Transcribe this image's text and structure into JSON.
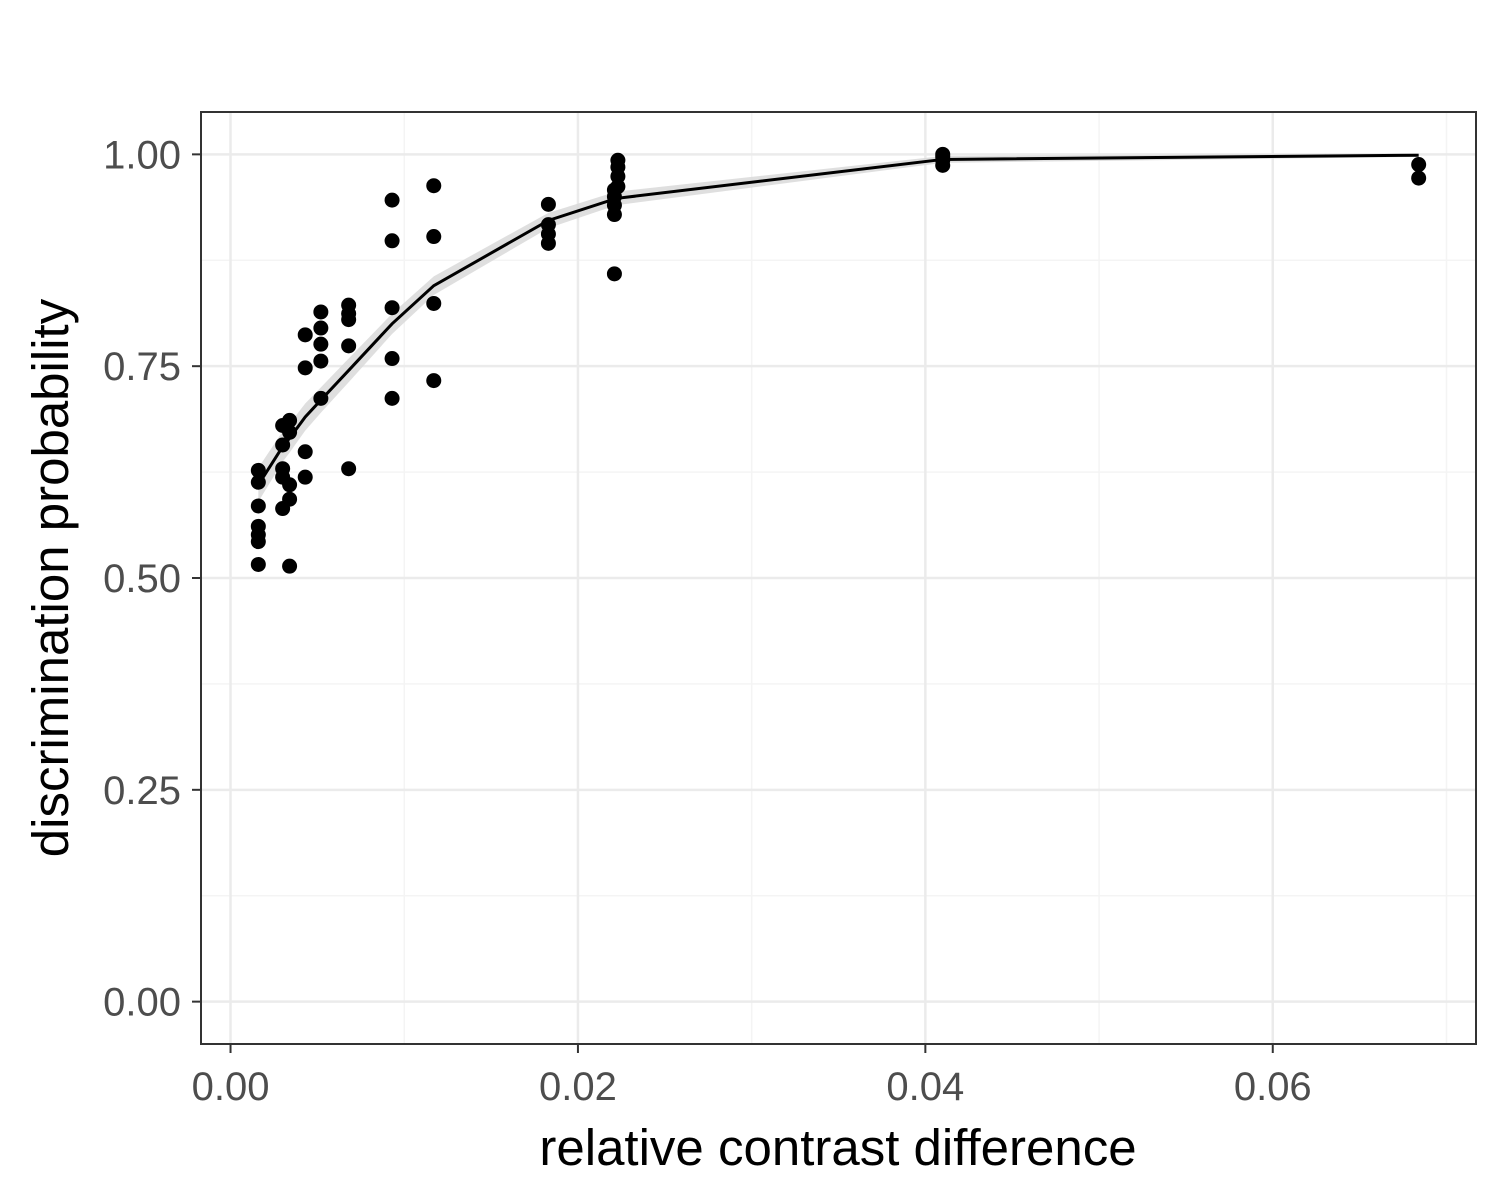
{
  "chart_data": {
    "type": "scatter",
    "title": "",
    "xlabel": "relative contrast difference",
    "ylabel": "discrimination probability",
    "xlim": [
      -0.0017,
      0.0717
    ],
    "ylim": [
      -0.05,
      1.05
    ],
    "x_ticks": [
      0.0,
      0.02,
      0.04,
      0.06
    ],
    "x_tick_labels": [
      "0.00",
      "0.02",
      "0.04",
      "0.06"
    ],
    "y_ticks": [
      0.0,
      0.25,
      0.5,
      0.75,
      1.0
    ],
    "y_tick_labels": [
      "0.00",
      "0.25",
      "0.50",
      "0.75",
      "1.00"
    ],
    "x_minor": [
      0.01,
      0.03,
      0.05,
      0.07
    ],
    "y_minor": [
      0.125,
      0.375,
      0.625,
      0.875
    ],
    "grid": true,
    "legend": "none",
    "colors": {
      "points": "#000000",
      "line": "#000000",
      "ribbon": "#d9d9d9",
      "grid_major": "#ebebeb",
      "grid_minor": "#f4f4f4",
      "panel_border": "#333333"
    },
    "points": [
      {
        "x": 0.0016,
        "y": 0.627
      },
      {
        "x": 0.0016,
        "y": 0.613
      },
      {
        "x": 0.0016,
        "y": 0.585
      },
      {
        "x": 0.0016,
        "y": 0.561
      },
      {
        "x": 0.0016,
        "y": 0.551
      },
      {
        "x": 0.0016,
        "y": 0.543
      },
      {
        "x": 0.0016,
        "y": 0.516
      },
      {
        "x": 0.003,
        "y": 0.68
      },
      {
        "x": 0.003,
        "y": 0.657
      },
      {
        "x": 0.003,
        "y": 0.629
      },
      {
        "x": 0.003,
        "y": 0.619
      },
      {
        "x": 0.003,
        "y": 0.582
      },
      {
        "x": 0.0034,
        "y": 0.686
      },
      {
        "x": 0.0034,
        "y": 0.672
      },
      {
        "x": 0.0034,
        "y": 0.61
      },
      {
        "x": 0.0034,
        "y": 0.593
      },
      {
        "x": 0.0034,
        "y": 0.514
      },
      {
        "x": 0.0043,
        "y": 0.787
      },
      {
        "x": 0.0043,
        "y": 0.748
      },
      {
        "x": 0.0043,
        "y": 0.649
      },
      {
        "x": 0.0043,
        "y": 0.619
      },
      {
        "x": 0.0052,
        "y": 0.814
      },
      {
        "x": 0.0052,
        "y": 0.795
      },
      {
        "x": 0.0052,
        "y": 0.776
      },
      {
        "x": 0.0052,
        "y": 0.756
      },
      {
        "x": 0.0052,
        "y": 0.712
      },
      {
        "x": 0.0068,
        "y": 0.822
      },
      {
        "x": 0.0068,
        "y": 0.812
      },
      {
        "x": 0.0068,
        "y": 0.805
      },
      {
        "x": 0.0068,
        "y": 0.774
      },
      {
        "x": 0.0068,
        "y": 0.629
      },
      {
        "x": 0.0093,
        "y": 0.946
      },
      {
        "x": 0.0093,
        "y": 0.898
      },
      {
        "x": 0.0093,
        "y": 0.819
      },
      {
        "x": 0.0093,
        "y": 0.759
      },
      {
        "x": 0.0093,
        "y": 0.712
      },
      {
        "x": 0.0117,
        "y": 0.963
      },
      {
        "x": 0.0117,
        "y": 0.903
      },
      {
        "x": 0.0117,
        "y": 0.824
      },
      {
        "x": 0.0117,
        "y": 0.733
      },
      {
        "x": 0.0183,
        "y": 0.941
      },
      {
        "x": 0.0183,
        "y": 0.917
      },
      {
        "x": 0.0183,
        "y": 0.906
      },
      {
        "x": 0.0183,
        "y": 0.895
      },
      {
        "x": 0.0221,
        "y": 0.958
      },
      {
        "x": 0.0221,
        "y": 0.95
      },
      {
        "x": 0.0221,
        "y": 0.94
      },
      {
        "x": 0.0221,
        "y": 0.929
      },
      {
        "x": 0.0221,
        "y": 0.859
      },
      {
        "x": 0.0223,
        "y": 0.993
      },
      {
        "x": 0.0223,
        "y": 0.985
      },
      {
        "x": 0.0223,
        "y": 0.974
      },
      {
        "x": 0.0223,
        "y": 0.962
      },
      {
        "x": 0.041,
        "y": 1.0
      },
      {
        "x": 0.041,
        "y": 0.997
      },
      {
        "x": 0.041,
        "y": 0.993
      },
      {
        "x": 0.041,
        "y": 0.987
      },
      {
        "x": 0.0684,
        "y": 0.988
      },
      {
        "x": 0.0684,
        "y": 0.972
      }
    ],
    "fit_line": {
      "x": [
        0.0016,
        0.003,
        0.0034,
        0.0043,
        0.0052,
        0.0068,
        0.0093,
        0.0117,
        0.0183,
        0.0222,
        0.041,
        0.0684
      ],
      "y": [
        0.61,
        0.655,
        0.665,
        0.69,
        0.71,
        0.745,
        0.8,
        0.845,
        0.922,
        0.948,
        0.994,
        0.999
      ],
      "band": [
        0.02,
        0.018,
        0.017,
        0.016,
        0.015,
        0.014,
        0.012,
        0.011,
        0.009,
        0.008,
        0.004,
        0.002
      ]
    }
  }
}
